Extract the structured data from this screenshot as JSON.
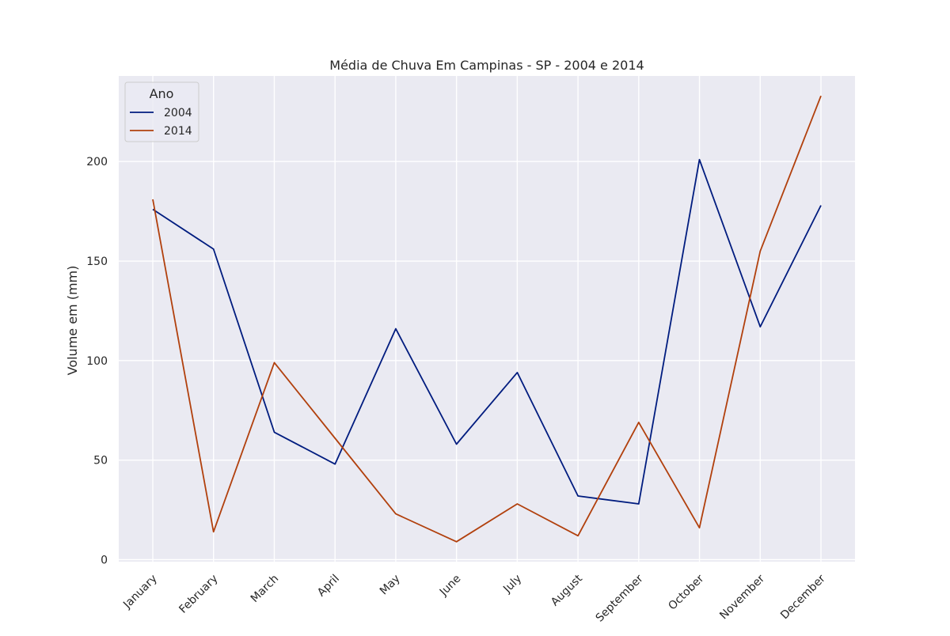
{
  "chart_data": {
    "type": "line",
    "title": "Média de Chuva  Em Campinas - SP - 2004 e 2014",
    "xlabel": "",
    "ylabel": "Volume em (mm)",
    "categories": [
      "January",
      "February",
      "March",
      "April",
      "May",
      "June",
      "July",
      "August",
      "September",
      "October",
      "November",
      "December"
    ],
    "ylim": [
      -1,
      243
    ],
    "yticks": [
      0,
      50,
      100,
      150,
      200
    ],
    "grid": true,
    "legend": {
      "title": "Ano",
      "placement": "top-left"
    },
    "series": [
      {
        "name": "2004",
        "color": "#001c7f",
        "values": [
          176,
          156,
          64,
          48,
          116,
          58,
          94,
          32,
          28,
          201,
          117,
          178
        ]
      },
      {
        "name": "2014",
        "color": "#b1400d",
        "values": [
          181,
          14,
          99,
          61,
          23,
          9,
          28,
          12,
          69,
          16,
          155,
          233
        ]
      }
    ]
  }
}
